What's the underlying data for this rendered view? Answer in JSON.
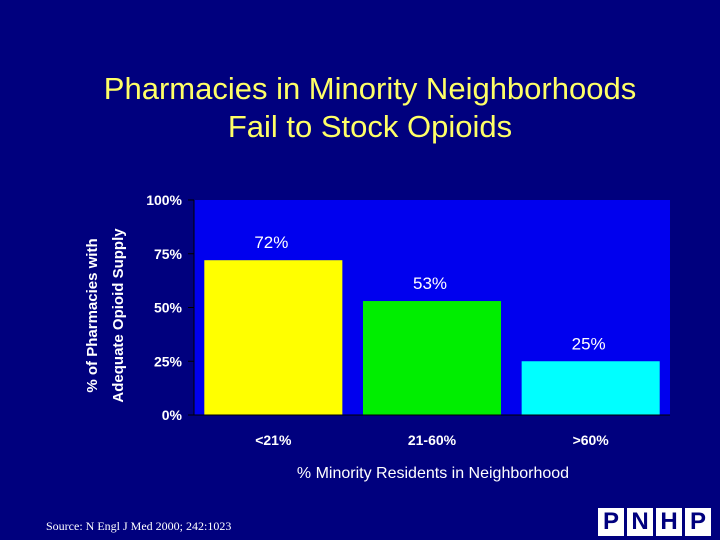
{
  "slide": {
    "title_line1": "Pharmacies in Minority Neighborhoods",
    "title_line2": "Fail to Stock Opioids",
    "source": "Source: N Engl J Med 2000; 242:1023",
    "logo_letters": [
      "P",
      "N",
      "H",
      "P"
    ]
  },
  "colors": {
    "background": "#00007e",
    "plot_area": "#0000ee",
    "title": "#ffff66",
    "text": "#ffffff",
    "bar_colors": [
      "#ffff00",
      "#00ee00",
      "#00ffff"
    ]
  },
  "chart_data": {
    "type": "bar",
    "categories": [
      "<21%",
      "21-60%",
      ">60%"
    ],
    "values": [
      72,
      53,
      25
    ],
    "data_labels": [
      "72%",
      "53%",
      "25%"
    ],
    "xlabel": "% Minority Residents in Neighborhood",
    "ylabel_line1": "% of Pharmacies with",
    "ylabel_line2": "Adequate Opioid Supply",
    "ylim": [
      0,
      100
    ],
    "yticks": [
      0,
      25,
      50,
      75,
      100
    ],
    "ytick_labels": [
      "0%",
      "25%",
      "50%",
      "75%",
      "100%"
    ],
    "grid": false,
    "legend": "none"
  }
}
